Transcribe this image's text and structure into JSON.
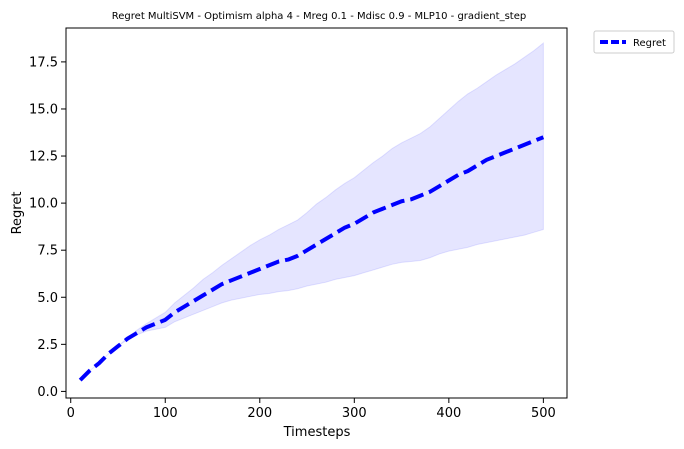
{
  "chart_data": {
    "type": "line",
    "title": "Regret MultiSVM - Optimism alpha 4 - Mreg 0.1 - Mdisc 0.9 - MLP10 - gradient_step",
    "xlabel": "Timesteps",
    "ylabel": "Regret",
    "xlim": [
      -5,
      525
    ],
    "ylim": [
      -0.35,
      19.3
    ],
    "xticks": [
      0,
      100,
      200,
      300,
      400,
      500
    ],
    "xtick_labels": [
      "0",
      "100",
      "200",
      "300",
      "400",
      "500"
    ],
    "yticks": [
      0.0,
      2.5,
      5.0,
      7.5,
      10.0,
      12.5,
      15.0,
      17.5
    ],
    "ytick_labels": [
      "0.0",
      "2.5",
      "5.0",
      "7.5",
      "10.0",
      "12.5",
      "15.0",
      "17.5"
    ],
    "grid": false,
    "legend": {
      "placement": "outside-top-right",
      "entries": [
        "Regret"
      ]
    },
    "series": [
      {
        "name": "Regret",
        "color": "#0000ff",
        "line_style": "dashed",
        "band_color": "#0000ff",
        "band_opacity": 0.1,
        "x": [
          10,
          20,
          30,
          40,
          50,
          60,
          70,
          80,
          90,
          100,
          110,
          120,
          130,
          140,
          150,
          160,
          170,
          180,
          190,
          200,
          210,
          220,
          230,
          240,
          250,
          260,
          270,
          280,
          290,
          300,
          310,
          320,
          330,
          340,
          350,
          360,
          370,
          380,
          390,
          400,
          410,
          420,
          430,
          440,
          450,
          460,
          470,
          480,
          490,
          500
        ],
        "mean": [
          0.6,
          1.1,
          1.5,
          2.0,
          2.4,
          2.8,
          3.1,
          3.4,
          3.6,
          3.8,
          4.2,
          4.5,
          4.8,
          5.1,
          5.4,
          5.7,
          5.9,
          6.1,
          6.3,
          6.5,
          6.7,
          6.9,
          7.0,
          7.2,
          7.5,
          7.8,
          8.1,
          8.4,
          8.7,
          8.9,
          9.2,
          9.5,
          9.7,
          9.9,
          10.1,
          10.2,
          10.4,
          10.6,
          10.9,
          11.2,
          11.5,
          11.7,
          12.0,
          12.3,
          12.5,
          12.7,
          12.9,
          13.1,
          13.3,
          13.5
        ],
        "lower": [
          0.6,
          1.1,
          1.5,
          2.0,
          2.4,
          2.75,
          3.0,
          3.2,
          3.3,
          3.4,
          3.7,
          3.9,
          4.1,
          4.3,
          4.5,
          4.7,
          4.85,
          4.95,
          5.05,
          5.15,
          5.2,
          5.3,
          5.35,
          5.45,
          5.6,
          5.7,
          5.8,
          5.95,
          6.05,
          6.15,
          6.3,
          6.45,
          6.6,
          6.75,
          6.85,
          6.9,
          6.95,
          7.1,
          7.3,
          7.45,
          7.55,
          7.65,
          7.8,
          7.9,
          8.0,
          8.1,
          8.2,
          8.3,
          8.45,
          8.6
        ],
        "upper": [
          0.6,
          1.1,
          1.5,
          2.0,
          2.4,
          2.85,
          3.25,
          3.6,
          3.9,
          4.2,
          4.7,
          5.1,
          5.5,
          5.95,
          6.3,
          6.7,
          7.05,
          7.4,
          7.75,
          8.05,
          8.3,
          8.6,
          8.85,
          9.1,
          9.5,
          9.95,
          10.3,
          10.7,
          11.05,
          11.35,
          11.75,
          12.15,
          12.5,
          12.9,
          13.2,
          13.45,
          13.7,
          14.05,
          14.5,
          14.95,
          15.4,
          15.8,
          16.1,
          16.45,
          16.8,
          17.1,
          17.4,
          17.75,
          18.1,
          18.5
        ]
      }
    ]
  }
}
